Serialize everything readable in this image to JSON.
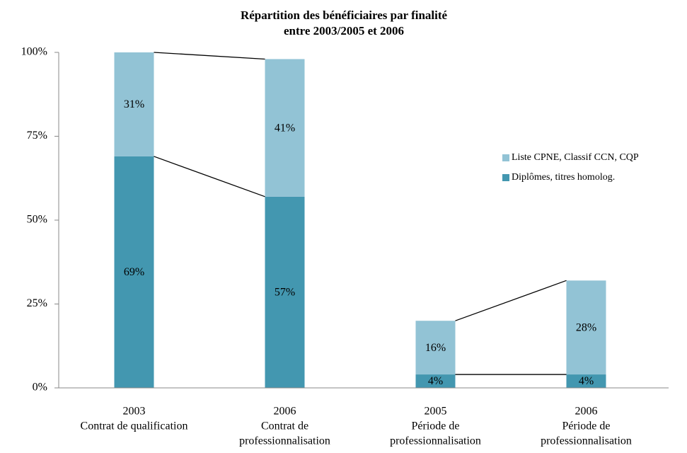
{
  "chart_data": {
    "type": "stacked_bar",
    "title": [
      "Répartition des bénéficiaires par finalité",
      "entre 2003/2005 et 2006"
    ],
    "categories": [
      [
        "2003",
        "Contrat de qualification"
      ],
      [
        "2006",
        "Contrat de",
        "professionnalisation"
      ],
      [
        "2005",
        "Période de",
        "professionnalisation"
      ],
      [
        "2006",
        "Période de",
        "professionnalisation"
      ]
    ],
    "series": [
      {
        "name": "Diplômes, titres homolog.",
        "color": "#4397b0",
        "values": [
          69,
          57,
          4,
          4
        ],
        "value_labels": [
          "69%",
          "57%",
          "4%",
          "4%"
        ]
      },
      {
        "name": "Liste CPNE, Classif CCN, CQP",
        "color": "#92c3d5",
        "values": [
          31,
          41,
          16,
          28
        ],
        "value_labels": [
          "31%",
          "41%",
          "16%",
          "28%"
        ]
      }
    ],
    "ylim": [
      0,
      100
    ],
    "yticks": [
      {
        "value": 0,
        "label": "0%"
      },
      {
        "value": 25,
        "label": "25%"
      },
      {
        "value": 50,
        "label": "50%"
      },
      {
        "value": 75,
        "label": "75%"
      },
      {
        "value": 100,
        "label": "100%"
      }
    ],
    "series_lines": [
      [
        0,
        1
      ],
      [
        2,
        3
      ]
    ]
  }
}
